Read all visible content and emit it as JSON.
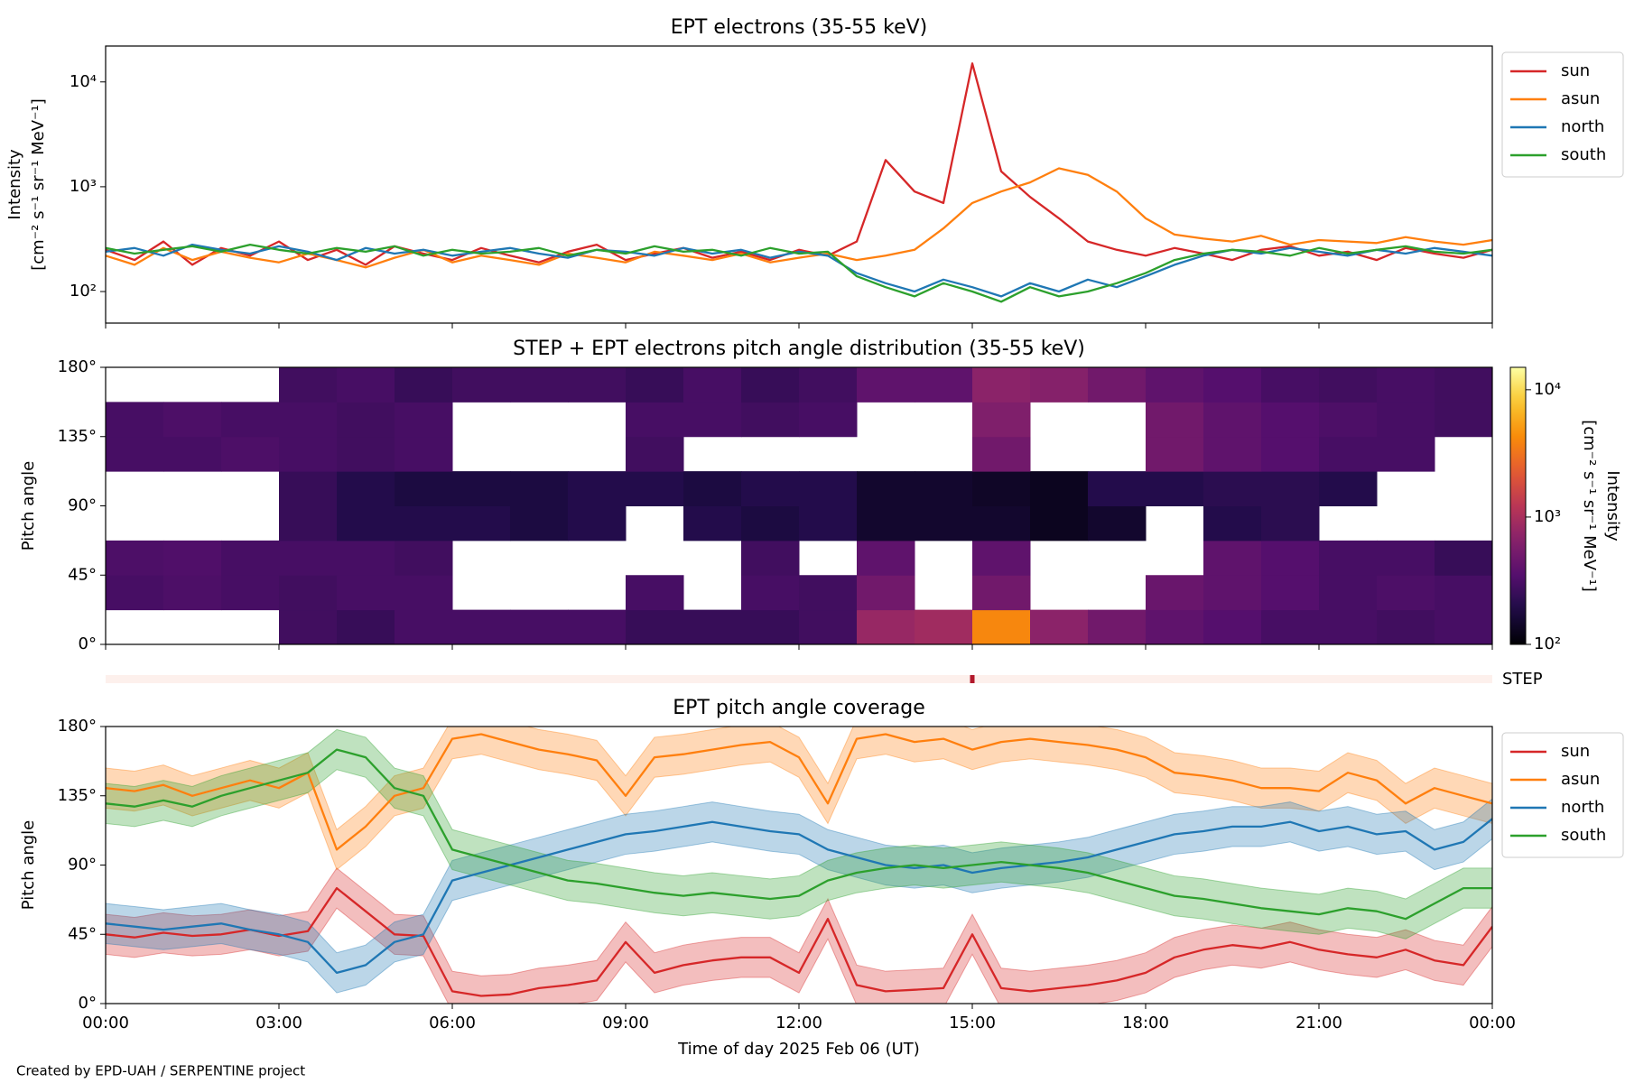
{
  "chart_data": [
    {
      "type": "line",
      "title": "EPT electrons (35-55 keV)",
      "ylabel": [
        "Intensity",
        "[cm⁻² s⁻¹ sr⁻¹ MeV⁻¹]"
      ],
      "log": true,
      "ylim": [
        50,
        22000
      ],
      "yticks": [
        {
          "value": 100,
          "label": "10²"
        },
        {
          "value": 1000,
          "label": "10³"
        },
        {
          "value": 10000,
          "label": "10⁴"
        }
      ],
      "legend": "outside upper right",
      "x": [
        0,
        0.5,
        1,
        1.5,
        2,
        2.5,
        3,
        3.5,
        4,
        4.5,
        5,
        5.5,
        6,
        6.5,
        7,
        7.5,
        8,
        8.5,
        9,
        9.5,
        10,
        10.5,
        11,
        11.5,
        12,
        12.5,
        13,
        13.5,
        14,
        14.5,
        15,
        15.5,
        16,
        16.5,
        17,
        17.5,
        18,
        18.5,
        19,
        19.5,
        20,
        20.5,
        21,
        21.5,
        22,
        22.5,
        23,
        23.5,
        24
      ],
      "series": [
        {
          "name": "sun",
          "color": "#d62728",
          "values": [
            250,
            200,
            300,
            180,
            260,
            220,
            300,
            200,
            250,
            180,
            270,
            230,
            200,
            260,
            220,
            190,
            240,
            280,
            200,
            230,
            260,
            210,
            240,
            200,
            250,
            220,
            300,
            1800,
            900,
            700,
            15000,
            1400,
            800,
            500,
            300,
            250,
            220,
            260,
            230,
            200,
            250,
            270,
            220,
            240,
            200,
            260,
            230,
            210,
            250
          ]
        },
        {
          "name": "asun",
          "color": "#ff7f0e",
          "values": [
            220,
            180,
            260,
            200,
            240,
            210,
            190,
            230,
            200,
            170,
            210,
            250,
            190,
            220,
            200,
            180,
            230,
            210,
            190,
            240,
            220,
            200,
            230,
            190,
            210,
            230,
            200,
            220,
            250,
            400,
            700,
            900,
            1100,
            1500,
            1300,
            900,
            500,
            350,
            320,
            300,
            340,
            280,
            310,
            300,
            290,
            330,
            300,
            280,
            310
          ]
        },
        {
          "name": "north",
          "color": "#1f77b4",
          "values": [
            240,
            260,
            220,
            280,
            250,
            230,
            270,
            240,
            200,
            260,
            230,
            250,
            220,
            240,
            260,
            230,
            210,
            250,
            240,
            220,
            260,
            230,
            250,
            210,
            240,
            220,
            150,
            120,
            100,
            130,
            110,
            90,
            120,
            100,
            130,
            110,
            140,
            180,
            220,
            250,
            230,
            260,
            240,
            220,
            250,
            230,
            260,
            240,
            220
          ]
        },
        {
          "name": "south",
          "color": "#2ca02c",
          "values": [
            260,
            230,
            250,
            270,
            240,
            280,
            250,
            230,
            260,
            240,
            270,
            220,
            250,
            230,
            240,
            260,
            220,
            250,
            230,
            270,
            240,
            250,
            220,
            260,
            230,
            240,
            140,
            110,
            90,
            120,
            100,
            80,
            110,
            90,
            100,
            120,
            150,
            200,
            230,
            250,
            240,
            220,
            260,
            230,
            250,
            270,
            240,
            230,
            250
          ]
        }
      ]
    },
    {
      "type": "heatmap",
      "title": "STEP + EPT electrons pitch angle distribution (35-55 keV)",
      "ylabel": "Pitch angle",
      "ylim": [
        0,
        180
      ],
      "yticks": [
        {
          "value": 0,
          "label": "0°"
        },
        {
          "value": 45,
          "label": "45°"
        },
        {
          "value": 90,
          "label": "90°"
        },
        {
          "value": 135,
          "label": "135°"
        },
        {
          "value": 180,
          "label": "180°"
        }
      ],
      "xbins": [
        0,
        1,
        2,
        3,
        4,
        5,
        6,
        7,
        8,
        9,
        10,
        11,
        12,
        13,
        14,
        15,
        16,
        17,
        18,
        19,
        20,
        21,
        22,
        23,
        24
      ],
      "ybins": [
        0,
        22.5,
        45,
        67.5,
        90,
        112.5,
        135,
        157.5,
        180
      ],
      "values": [
        [
          null,
          null,
          null,
          280,
          250,
          300,
          300,
          300,
          300,
          250,
          250,
          250,
          280,
          800,
          900,
          4000,
          700,
          500,
          400,
          350,
          300,
          300,
          280,
          300
        ],
        [
          300,
          320,
          300,
          280,
          300,
          300,
          null,
          null,
          null,
          300,
          null,
          300,
          280,
          500,
          null,
          500,
          null,
          null,
          450,
          400,
          350,
          300,
          320,
          300
        ],
        [
          320,
          330,
          300,
          300,
          300,
          280,
          null,
          null,
          null,
          null,
          null,
          280,
          null,
          400,
          null,
          400,
          null,
          null,
          null,
          400,
          350,
          300,
          300,
          250
        ],
        [
          null,
          null,
          null,
          250,
          200,
          200,
          200,
          180,
          200,
          null,
          200,
          180,
          200,
          150,
          150,
          150,
          130,
          150,
          null,
          200,
          220,
          null,
          null,
          null
        ],
        [
          null,
          null,
          null,
          250,
          200,
          180,
          180,
          180,
          200,
          200,
          180,
          200,
          200,
          150,
          150,
          140,
          130,
          200,
          200,
          220,
          220,
          200,
          null,
          null
        ],
        [
          300,
          300,
          320,
          300,
          280,
          300,
          null,
          null,
          null,
          280,
          null,
          null,
          null,
          null,
          null,
          500,
          null,
          null,
          500,
          400,
          350,
          300,
          300,
          null
        ],
        [
          300,
          320,
          300,
          300,
          280,
          300,
          null,
          null,
          null,
          300,
          300,
          280,
          300,
          null,
          null,
          600,
          null,
          null,
          500,
          400,
          350,
          320,
          300,
          280
        ],
        [
          null,
          null,
          null,
          280,
          300,
          250,
          280,
          280,
          280,
          250,
          300,
          250,
          280,
          400,
          400,
          700,
          650,
          500,
          400,
          350,
          300,
          280,
          300,
          280
        ]
      ],
      "colormap": "inferno",
      "clim": [
        100,
        15000
      ],
      "cticks": [
        {
          "value": 100,
          "label": "10²"
        },
        {
          "value": 1000,
          "label": "10³"
        },
        {
          "value": 10000,
          "label": "10⁴"
        }
      ],
      "clabel": [
        "Intensity",
        "[cm⁻² s⁻¹ sr⁻¹ MeV⁻¹]"
      ],
      "step": {
        "label": "STEP",
        "x": [
          15
        ],
        "color": "#b2182b"
      }
    },
    {
      "type": "line",
      "title": "EPT pitch angle coverage",
      "ylabel": "Pitch angle",
      "xlabel": "Time of day 2025 Feb 06 (UT)",
      "ylim": [
        0,
        180
      ],
      "yticks": [
        {
          "value": 0,
          "label": "0°"
        },
        {
          "value": 45,
          "label": "45°"
        },
        {
          "value": 90,
          "label": "90°"
        },
        {
          "value": 135,
          "label": "135°"
        },
        {
          "value": 180,
          "label": "180°"
        }
      ],
      "xlim": [
        0,
        24
      ],
      "xticks": [
        {
          "value": 0,
          "label": "00:00"
        },
        {
          "value": 3,
          "label": "03:00"
        },
        {
          "value": 6,
          "label": "06:00"
        },
        {
          "value": 9,
          "label": "09:00"
        },
        {
          "value": 12,
          "label": "12:00"
        },
        {
          "value": 15,
          "label": "15:00"
        },
        {
          "value": 18,
          "label": "18:00"
        },
        {
          "value": 21,
          "label": "21:00"
        },
        {
          "value": 24,
          "label": "00:00"
        }
      ],
      "legend": "outside upper right",
      "x": [
        0,
        0.5,
        1,
        1.5,
        2,
        2.5,
        3,
        3.5,
        4,
        4.5,
        5,
        5.5,
        6,
        6.5,
        7,
        7.5,
        8,
        8.5,
        9,
        9.5,
        10,
        10.5,
        11,
        11.5,
        12,
        12.5,
        13,
        13.5,
        14,
        14.5,
        15,
        15.5,
        16,
        16.5,
        17,
        17.5,
        18,
        18.5,
        19,
        19.5,
        20,
        20.5,
        21,
        21.5,
        22,
        22.5,
        23,
        23.5,
        24
      ],
      "series": [
        {
          "name": "sun",
          "color": "#d62728",
          "spread": 13,
          "values": [
            45,
            43,
            46,
            44,
            45,
            48,
            44,
            47,
            75,
            60,
            45,
            44,
            8,
            5,
            6,
            10,
            12,
            15,
            40,
            20,
            25,
            28,
            30,
            30,
            20,
            55,
            12,
            8,
            9,
            10,
            45,
            10,
            8,
            10,
            12,
            15,
            20,
            30,
            35,
            38,
            36,
            40,
            35,
            32,
            30,
            35,
            28,
            25,
            50
          ]
        },
        {
          "name": "asun",
          "color": "#ff7f0e",
          "spread": 13,
          "values": [
            140,
            138,
            142,
            135,
            140,
            145,
            140,
            150,
            100,
            115,
            135,
            140,
            172,
            175,
            170,
            165,
            162,
            158,
            135,
            160,
            162,
            165,
            168,
            170,
            160,
            130,
            172,
            175,
            170,
            172,
            165,
            170,
            172,
            170,
            168,
            165,
            160,
            150,
            148,
            145,
            140,
            140,
            138,
            150,
            145,
            130,
            140,
            135,
            130
          ]
        },
        {
          "name": "north",
          "color": "#1f77b4",
          "spread": 13,
          "values": [
            52,
            50,
            48,
            50,
            52,
            48,
            45,
            40,
            20,
            25,
            40,
            45,
            80,
            85,
            90,
            95,
            100,
            105,
            110,
            112,
            115,
            118,
            115,
            112,
            110,
            100,
            95,
            90,
            88,
            90,
            85,
            88,
            90,
            92,
            95,
            100,
            105,
            110,
            112,
            115,
            115,
            118,
            112,
            115,
            110,
            112,
            100,
            105,
            120
          ]
        },
        {
          "name": "south",
          "color": "#2ca02c",
          "spread": 13,
          "values": [
            130,
            128,
            132,
            128,
            135,
            140,
            145,
            150,
            165,
            160,
            140,
            135,
            100,
            95,
            90,
            85,
            80,
            78,
            75,
            72,
            70,
            72,
            70,
            68,
            70,
            80,
            85,
            88,
            90,
            88,
            90,
            92,
            90,
            88,
            85,
            80,
            75,
            70,
            68,
            65,
            62,
            60,
            58,
            62,
            60,
            55,
            65,
            75,
            75
          ]
        }
      ]
    }
  ],
  "footer": "Created by EPD-UAH / SERPENTINE project"
}
